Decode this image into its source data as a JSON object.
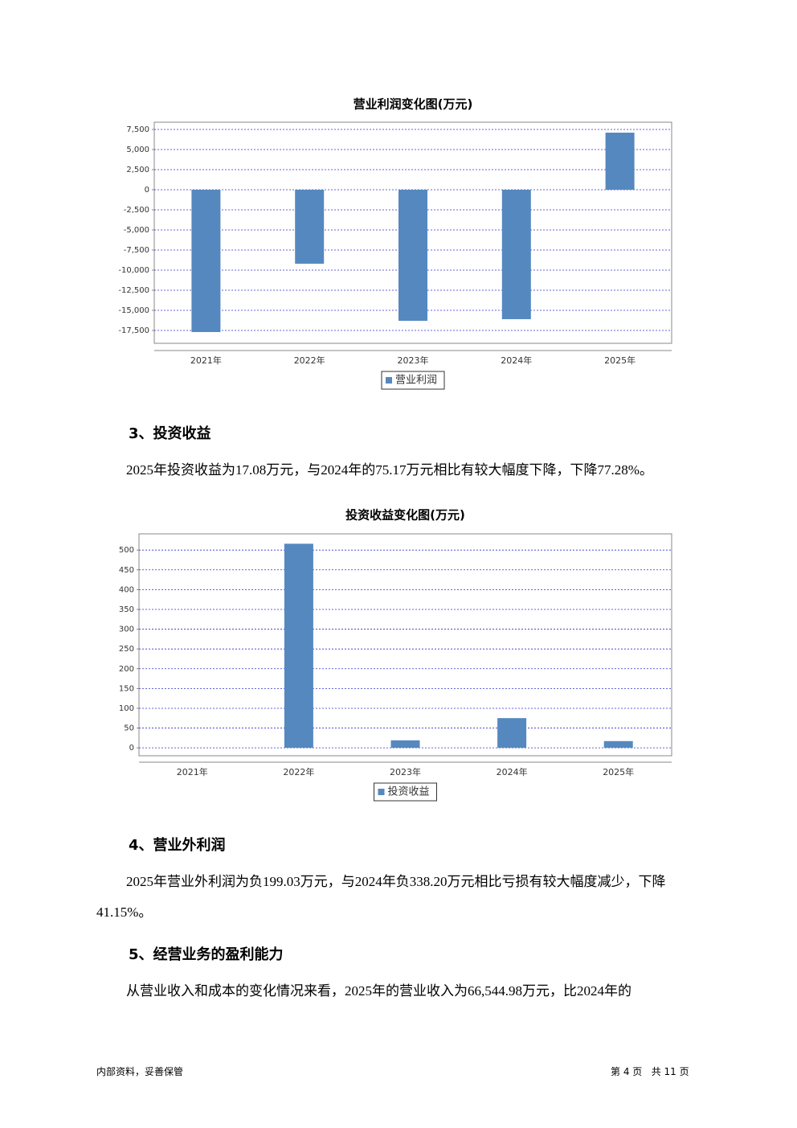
{
  "chart_data": [
    {
      "type": "bar",
      "title": "营业利润变化图(万元)",
      "categories": [
        "2021年",
        "2022年",
        "2023年",
        "2024年",
        "2025年"
      ],
      "series": [
        {
          "name": "营业利润",
          "color": "#5588bf",
          "values": [
            -17700,
            -9200,
            -16300,
            -16100,
            7100
          ]
        }
      ],
      "ylim": [
        -19100,
        8400
      ],
      "yticks": [
        {
          "value": 7500,
          "label": "7,500"
        },
        {
          "value": 5000,
          "label": "5,000"
        },
        {
          "value": 2500,
          "label": "2,500"
        },
        0,
        {
          "value": -2500,
          "label": "-2,500"
        },
        {
          "value": -5000,
          "label": "-5,000"
        },
        {
          "value": -7500,
          "label": "-7,500"
        },
        {
          "value": -10000,
          "label": "-10,000"
        },
        {
          "value": -12500,
          "label": "-12,500"
        },
        {
          "value": -15000,
          "label": "-15,000"
        },
        {
          "value": -17500,
          "label": "-17,500"
        }
      ],
      "grid": true
    },
    {
      "type": "bar",
      "title": "投资收益变化图(万元)",
      "categories": [
        "2021年",
        "2022年",
        "2023年",
        "2024年",
        "2025年"
      ],
      "series": [
        {
          "name": "投资收益",
          "color": "#5588bf",
          "values": [
            0,
            516,
            19,
            75.17,
            17.08
          ]
        }
      ],
      "ylim": [
        -20,
        541
      ],
      "yticks": [
        0,
        50,
        100,
        150,
        200,
        250,
        300,
        350,
        400,
        450,
        500
      ],
      "grid": true
    }
  ],
  "sections": [
    {
      "heading": "3、投资收益",
      "paragraph": "2025年投资收益为17.08万元，与2024年的75.17万元相比有较大幅度下降，下降77.28%。"
    },
    {
      "heading": "4、营业外利润",
      "paragraph": "2025年营业外利润为负199.03万元，与2024年负338.20万元相比亏损有较大幅度减少，下降41.15%。"
    },
    {
      "heading": "5、经营业务的盈利能力",
      "paragraph": "从营业收入和成本的变化情况来看，2025年的营业收入为66,544.98万元，比2024年的"
    }
  ],
  "footer": {
    "left": "内部资料，妥善保管",
    "right": "第 4 页   共 11 页"
  }
}
